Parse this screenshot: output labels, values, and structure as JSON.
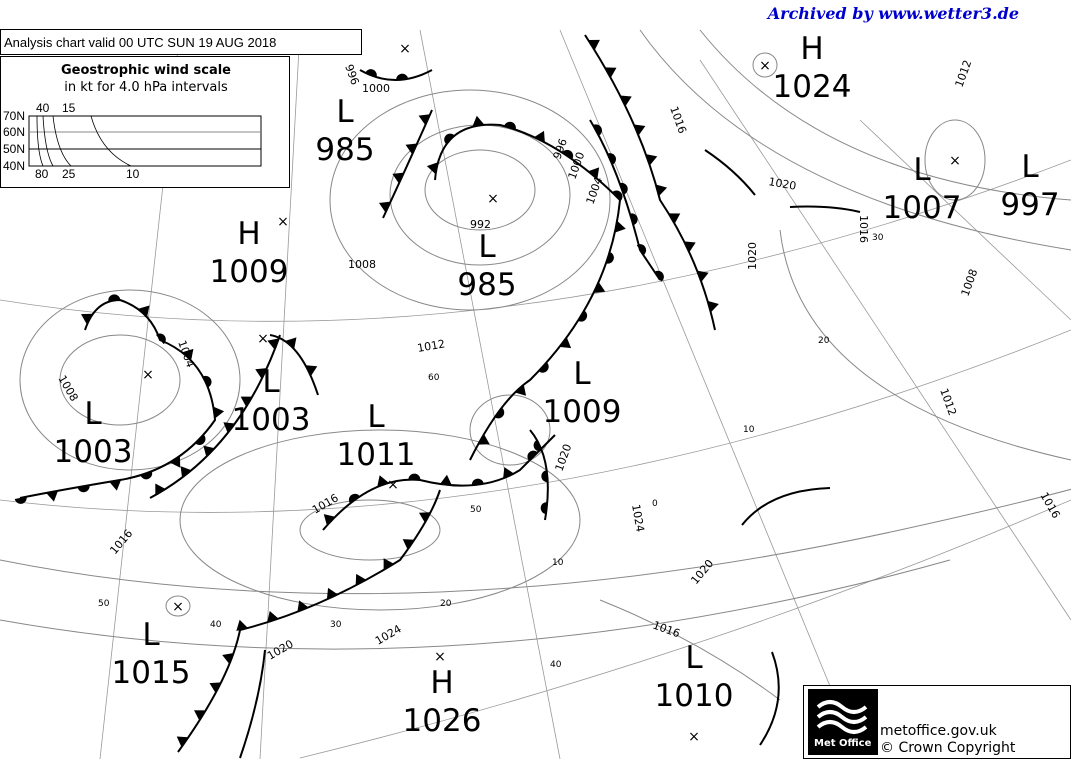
{
  "archive_banner": "Archived by www.wetter3.de",
  "chart_title": "Analysis chart  valid 00 UTC SUN 19  AUG 2018",
  "wind_scale": {
    "title": "Geostrophic wind scale",
    "subtitle": "in kt for 4.0 hPa intervals",
    "lat_labels": [
      "70N",
      "60N",
      "50N",
      "40N"
    ],
    "top_labels": [
      "40",
      "15"
    ],
    "bottom_labels": [
      "80",
      "25",
      "10"
    ]
  },
  "pressure_systems": [
    {
      "type": "L",
      "value": "985"
    },
    {
      "type": "H",
      "value": "1009"
    },
    {
      "type": "L",
      "value": "985"
    },
    {
      "type": "L",
      "value": "1003"
    },
    {
      "type": "L",
      "value": "1003"
    },
    {
      "type": "L",
      "value": "1011"
    },
    {
      "type": "L",
      "value": "1009"
    },
    {
      "type": "H",
      "value": "1024"
    },
    {
      "type": "L",
      "value": "1007"
    },
    {
      "type": "L",
      "value": "997"
    },
    {
      "type": "L",
      "value": "1015"
    },
    {
      "type": "H",
      "value": "1026"
    },
    {
      "type": "L",
      "value": "1010"
    }
  ],
  "isobar_labels": [
    "996",
    "1000",
    "992",
    "1008",
    "1012",
    "1004",
    "1008",
    "1016",
    "1016",
    "1020",
    "1024",
    "1020",
    "1016",
    "1020",
    "1024",
    "1020",
    "1016",
    "1012",
    "1008",
    "1016",
    "1012",
    "1016",
    "1004",
    "1000",
    "996",
    "1020"
  ],
  "latitude_labels": [
    "60",
    "50",
    "40",
    "30",
    "20",
    "10",
    "50",
    "40",
    "30",
    "20",
    "10",
    "0"
  ],
  "fronts": [
    {
      "type": "cold"
    },
    {
      "type": "warm"
    },
    {
      "type": "occluded"
    },
    {
      "type": "cold"
    },
    {
      "type": "warm"
    },
    {
      "type": "occluded"
    },
    {
      "type": "cold"
    },
    {
      "type": "occluded"
    },
    {
      "type": "cold"
    },
    {
      "type": "warm"
    }
  ],
  "footer": {
    "logo_text": "Met Office",
    "site": "metoffice.gov.uk",
    "copyright": "© Crown Copyright"
  },
  "colors": {
    "banner": "#0000cc",
    "isobar": "#888888",
    "front": "#000000"
  }
}
